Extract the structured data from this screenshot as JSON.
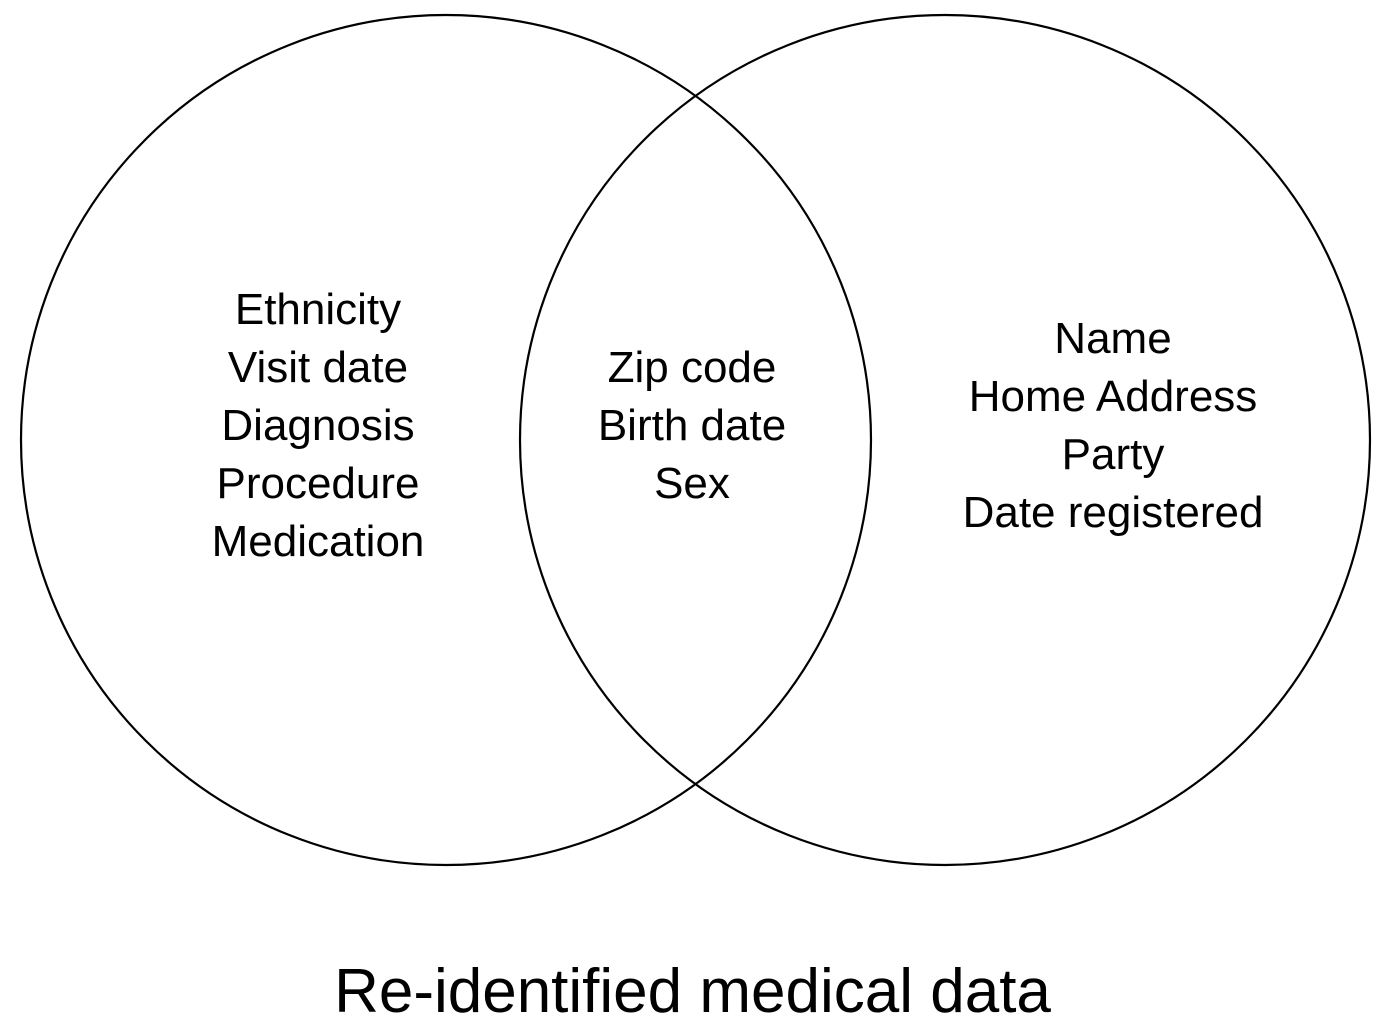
{
  "diagram": {
    "left_items": [
      "Ethnicity",
      "Visit date",
      "Diagnosis",
      "Procedure",
      "Medication"
    ],
    "overlap_items": [
      "Zip code",
      "Birth date",
      "Sex"
    ],
    "right_items": [
      "Name",
      "Home Address",
      "Party",
      "Date registered"
    ],
    "caption": "Re-identified medical data"
  }
}
